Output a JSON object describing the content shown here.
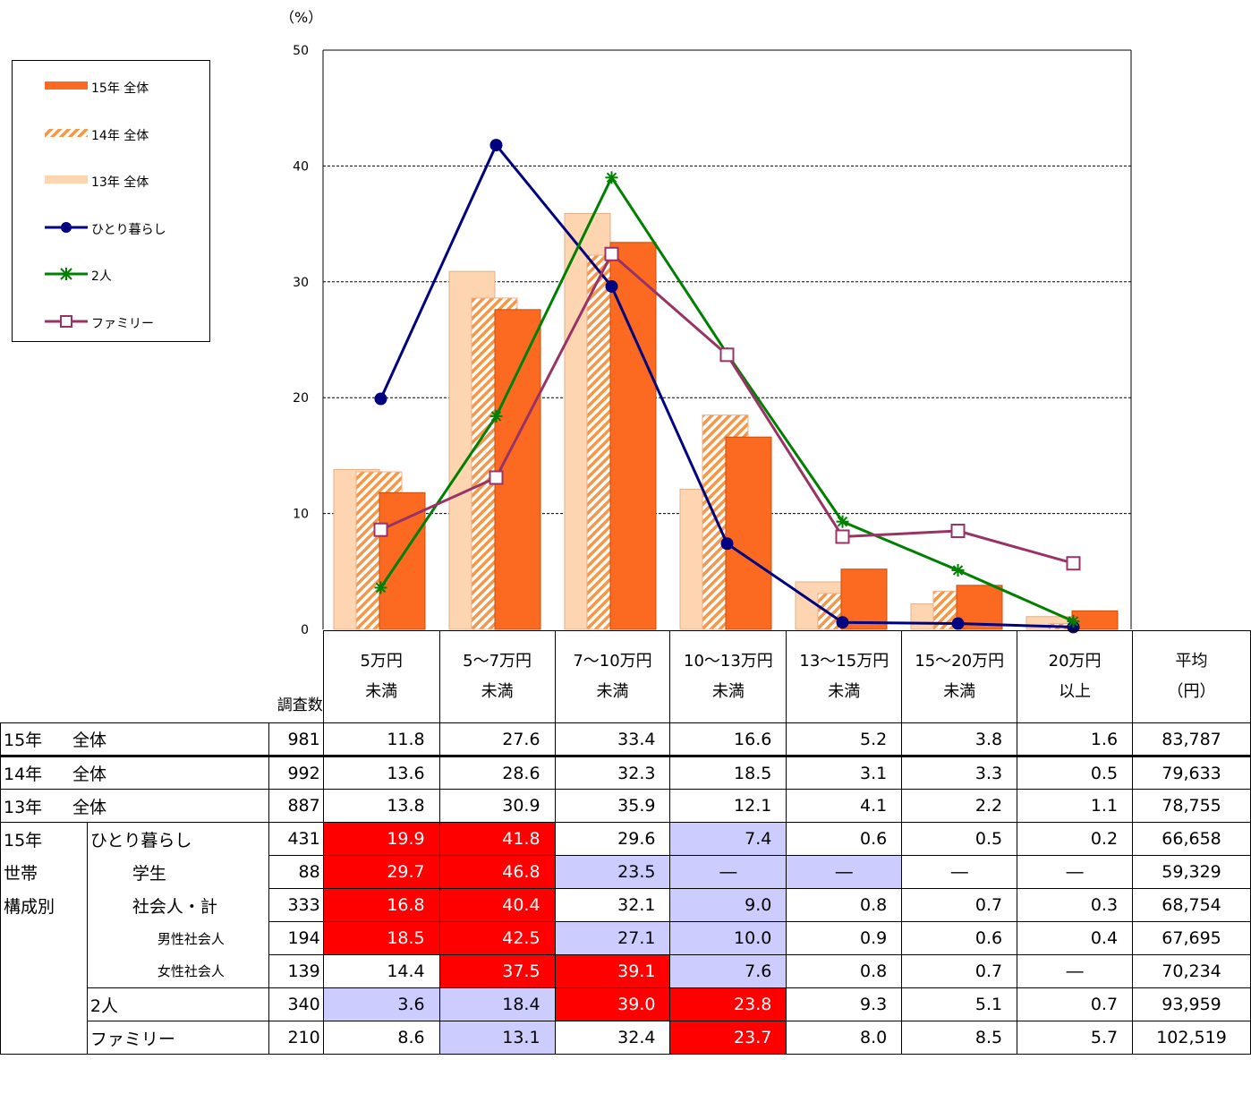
{
  "chart_data": {
    "type": "bar",
    "y_unit": "（%）",
    "ylim": [
      0,
      50
    ],
    "yticks": [
      "0",
      "10",
      "20",
      "30",
      "40",
      "50"
    ],
    "categories": [
      "5万円未満",
      "5～7万円未満",
      "7～10万円未満",
      "10～13万円未満",
      "13～15万円未満",
      "15～20万円未満",
      "20万円以上"
    ],
    "bar_series": [
      {
        "name": "13年 全体",
        "values": [
          13.8,
          30.9,
          35.9,
          12.1,
          4.1,
          2.2,
          1.1
        ],
        "color": "#fdd5b1"
      },
      {
        "name": "14年 全体",
        "values": [
          13.6,
          28.6,
          32.3,
          18.5,
          3.1,
          3.3,
          0.5
        ],
        "color": "#f79646",
        "pattern": "hatch"
      },
      {
        "name": "15年 全体",
        "values": [
          11.8,
          27.6,
          33.4,
          16.6,
          5.2,
          3.8,
          1.6
        ],
        "color": "#fb6a20"
      }
    ],
    "line_series": [
      {
        "name": "ひとり暮らし",
        "values": [
          19.9,
          41.8,
          29.6,
          7.4,
          0.6,
          0.5,
          0.2
        ],
        "color": "#000080",
        "marker": "circle"
      },
      {
        "name": "2人",
        "values": [
          3.6,
          18.4,
          39.0,
          23.8,
          9.3,
          5.1,
          0.7
        ],
        "color": "#008000",
        "marker": "star"
      },
      {
        "name": "ファミリー",
        "values": [
          8.6,
          13.1,
          32.4,
          23.7,
          8.0,
          8.5,
          5.7
        ],
        "color": "#993366",
        "marker": "square"
      }
    ],
    "grid": true
  },
  "legend": [
    {
      "label": "15年 全体",
      "kind": "bar",
      "color": "#fb6a20"
    },
    {
      "label": "14年 全体",
      "kind": "hatch",
      "color": "#f79646"
    },
    {
      "label": "13年 全体",
      "kind": "bar",
      "color": "#fdd5b1"
    },
    {
      "label": "ひとり暮らし",
      "kind": "line",
      "color": "#000080",
      "marker": "circle"
    },
    {
      "label": "2人",
      "kind": "line",
      "color": "#008000",
      "marker": "star"
    },
    {
      "label": "ファミリー",
      "kind": "line",
      "color": "#993366",
      "marker": "square"
    }
  ],
  "table": {
    "count_header": "調査数",
    "headers": [
      [
        "5万円",
        "未満"
      ],
      [
        "5～7万円",
        "未満"
      ],
      [
        "7～10万円",
        "未満"
      ],
      [
        "10～13万円",
        "未満"
      ],
      [
        "13～15万円",
        "未満"
      ],
      [
        "15～20万円",
        "未満"
      ],
      [
        "20万円",
        "以上"
      ],
      [
        "平均",
        "（円）"
      ]
    ],
    "group_label": [
      "15年",
      "世帯",
      "構成別"
    ],
    "rows": [
      {
        "year": "15年",
        "label": "全体",
        "count": "981",
        "values": [
          "11.8",
          "27.6",
          "33.4",
          "16.6",
          "5.2",
          "3.8",
          "1.6"
        ],
        "avg": "83,787",
        "hl": [
          "",
          "",
          "",
          "",
          "",
          "",
          ""
        ]
      },
      {
        "year": "14年",
        "label": "全体",
        "count": "992",
        "values": [
          "13.6",
          "28.6",
          "32.3",
          "18.5",
          "3.1",
          "3.3",
          "0.5"
        ],
        "avg": "79,633",
        "hl": [
          "",
          "",
          "",
          "",
          "",
          "",
          ""
        ]
      },
      {
        "year": "13年",
        "label": "全体",
        "count": "887",
        "values": [
          "13.8",
          "30.9",
          "35.9",
          "12.1",
          "4.1",
          "2.2",
          "1.1"
        ],
        "avg": "78,755",
        "hl": [
          "",
          "",
          "",
          "",
          "",
          "",
          ""
        ]
      },
      {
        "label": "ひとり暮らし",
        "level": 1,
        "count": "431",
        "values": [
          "19.9",
          "41.8",
          "29.6",
          "7.4",
          "0.6",
          "0.5",
          "0.2"
        ],
        "avg": "66,658",
        "hl": [
          "hi",
          "hi",
          "",
          "lo",
          "",
          "",
          ""
        ]
      },
      {
        "label": "学生",
        "level": 2,
        "count": "88",
        "values": [
          "29.7",
          "46.8",
          "23.5",
          "―",
          "―",
          "―",
          "―"
        ],
        "avg": "59,329",
        "hl": [
          "hi",
          "hi",
          "lo",
          "lo",
          "lo",
          "",
          ""
        ]
      },
      {
        "label": "社会人・計",
        "level": 2,
        "count": "333",
        "values": [
          "16.8",
          "40.4",
          "32.1",
          "9.0",
          "0.8",
          "0.7",
          "0.3"
        ],
        "avg": "68,754",
        "hl": [
          "hi",
          "hi",
          "",
          "lo",
          "",
          "",
          ""
        ]
      },
      {
        "label": "男性社会人",
        "level": 3,
        "count": "194",
        "values": [
          "18.5",
          "42.5",
          "27.1",
          "10.0",
          "0.9",
          "0.6",
          "0.4"
        ],
        "avg": "67,695",
        "hl": [
          "hi",
          "hi",
          "lo",
          "lo",
          "",
          "",
          ""
        ]
      },
      {
        "label": "女性社会人",
        "level": 3,
        "count": "139",
        "values": [
          "14.4",
          "37.5",
          "39.1",
          "7.6",
          "0.8",
          "0.7",
          "―"
        ],
        "avg": "70,234",
        "hl": [
          "",
          "hi",
          "hi",
          "lo",
          "",
          "",
          ""
        ]
      },
      {
        "label": "2人",
        "level": 1,
        "count": "340",
        "values": [
          "3.6",
          "18.4",
          "39.0",
          "23.8",
          "9.3",
          "5.1",
          "0.7"
        ],
        "avg": "93,959",
        "hl": [
          "lo",
          "lo",
          "hi",
          "hi",
          "",
          "",
          ""
        ]
      },
      {
        "label": "ファミリー",
        "level": 1,
        "count": "210",
        "values": [
          "8.6",
          "13.1",
          "32.4",
          "23.7",
          "8.0",
          "8.5",
          "5.7"
        ],
        "avg": "102,519",
        "hl": [
          "",
          "lo",
          "",
          "hi",
          "",
          "",
          ""
        ]
      }
    ]
  }
}
